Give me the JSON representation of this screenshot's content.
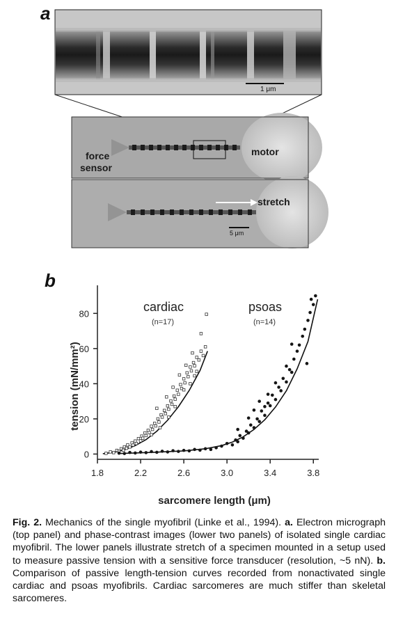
{
  "panel_a": {
    "letter": "a",
    "em_scale_label": "1 μm",
    "force_sensor_label_1": "force",
    "force_sensor_label_2": "sensor",
    "motor_label": "motor",
    "stretch_label": "stretch",
    "phase_scale_label": "5 μm"
  },
  "panel_b": {
    "letter": "b"
  },
  "chart_data": {
    "type": "scatter",
    "title": "",
    "xlabel": "sarcomere length (μm)",
    "ylabel": "tension (mN/mm²)",
    "xlim": [
      1.8,
      3.85
    ],
    "ylim": [
      -3,
      92
    ],
    "xticks": [
      "1.8",
      "2.2",
      "2.6",
      "3.0",
      "3.4",
      "3.8"
    ],
    "xtick_values": [
      1.8,
      2.2,
      2.6,
      3.0,
      3.4,
      3.8
    ],
    "yticks": [
      "0",
      "20",
      "40",
      "60",
      "80"
    ],
    "ytick_values": [
      0,
      20,
      40,
      60,
      80
    ],
    "annotations": [
      {
        "text": "cardiac",
        "sub": "(n=17)"
      },
      {
        "text": "psoas",
        "sub": "(n=14)"
      }
    ],
    "series": [
      {
        "marker": "open",
        "points": [
          [
            1.88,
            0.4
          ],
          [
            1.92,
            1.2
          ],
          [
            1.95,
            0.8
          ],
          [
            1.98,
            2.1
          ],
          [
            2.0,
            1.5
          ],
          [
            2.02,
            3.0
          ],
          [
            2.04,
            2.2
          ],
          [
            2.05,
            4.1
          ],
          [
            2.07,
            3.3
          ],
          [
            2.08,
            5.2
          ],
          [
            2.1,
            4.0
          ],
          [
            2.12,
            6.3
          ],
          [
            2.13,
            5.1
          ],
          [
            2.15,
            7.4
          ],
          [
            2.16,
            6.0
          ],
          [
            2.18,
            8.8
          ],
          [
            2.2,
            7.5
          ],
          [
            2.21,
            10.2
          ],
          [
            2.22,
            9.0
          ],
          [
            2.24,
            12.0
          ],
          [
            2.25,
            10.5
          ],
          [
            2.27,
            13.5
          ],
          [
            2.28,
            12.2
          ],
          [
            2.3,
            15.8
          ],
          [
            2.31,
            14.0
          ],
          [
            2.33,
            17.5
          ],
          [
            2.34,
            16.0
          ],
          [
            2.36,
            20.0
          ],
          [
            2.37,
            18.2
          ],
          [
            2.39,
            22.3
          ],
          [
            2.4,
            21.0
          ],
          [
            2.42,
            24.8
          ],
          [
            2.43,
            23.0
          ],
          [
            2.45,
            27.4
          ],
          [
            2.46,
            25.5
          ],
          [
            2.48,
            30.2
          ],
          [
            2.49,
            28.3
          ],
          [
            2.51,
            33.0
          ],
          [
            2.52,
            31.2
          ],
          [
            2.54,
            36.3
          ],
          [
            2.55,
            34.0
          ],
          [
            2.57,
            39.5
          ],
          [
            2.58,
            37.3
          ],
          [
            2.6,
            42.8
          ],
          [
            2.61,
            40.5
          ],
          [
            2.63,
            46.2
          ],
          [
            2.64,
            44.0
          ],
          [
            2.66,
            49.5
          ],
          [
            2.67,
            47.3
          ],
          [
            2.69,
            52.0
          ],
          [
            2.7,
            50.2
          ],
          [
            2.72,
            55.0
          ],
          [
            2.74,
            53.5
          ],
          [
            2.76,
            58.5
          ],
          [
            2.78,
            56.0
          ],
          [
            2.8,
            61.0
          ],
          [
            2.35,
            26.0
          ],
          [
            2.44,
            32.5
          ],
          [
            2.5,
            38.0
          ],
          [
            2.56,
            45.0
          ],
          [
            2.62,
            50.5
          ],
          [
            2.68,
            57.5
          ],
          [
            2.72,
            47.0
          ],
          [
            2.6,
            36.5
          ],
          [
            2.52,
            27.0
          ],
          [
            2.46,
            21.0
          ],
          [
            2.38,
            15.0
          ],
          [
            2.3,
            11.0
          ],
          [
            2.76,
            68.5
          ],
          [
            2.81,
            79.5
          ],
          [
            2.7,
            44.5
          ],
          [
            2.66,
            40.0
          ]
        ]
      },
      {
        "marker": "filled",
        "points": [
          [
            2.0,
            0.5
          ],
          [
            2.05,
            0.3
          ],
          [
            2.1,
            0.9
          ],
          [
            2.15,
            0.6
          ],
          [
            2.2,
            1.1
          ],
          [
            2.25,
            0.8
          ],
          [
            2.3,
            1.4
          ],
          [
            2.35,
            1.0
          ],
          [
            2.4,
            1.6
          ],
          [
            2.45,
            1.2
          ],
          [
            2.5,
            1.9
          ],
          [
            2.55,
            1.5
          ],
          [
            2.6,
            2.1
          ],
          [
            2.65,
            1.8
          ],
          [
            2.7,
            2.6
          ],
          [
            2.75,
            2.2
          ],
          [
            2.8,
            3.0
          ],
          [
            2.85,
            2.6
          ],
          [
            2.9,
            3.6
          ],
          [
            2.95,
            4.5
          ],
          [
            3.0,
            6.0
          ],
          [
            3.05,
            5.2
          ],
          [
            3.08,
            8.0
          ],
          [
            3.1,
            7.0
          ],
          [
            3.12,
            10.5
          ],
          [
            3.15,
            9.0
          ],
          [
            3.18,
            13.0
          ],
          [
            3.2,
            12.0
          ],
          [
            3.22,
            16.5
          ],
          [
            3.25,
            15.0
          ],
          [
            3.28,
            20.0
          ],
          [
            3.3,
            18.5
          ],
          [
            3.32,
            24.5
          ],
          [
            3.35,
            22.0
          ],
          [
            3.38,
            29.0
          ],
          [
            3.4,
            27.5
          ],
          [
            3.42,
            33.5
          ],
          [
            3.45,
            31.0
          ],
          [
            3.48,
            38.0
          ],
          [
            3.5,
            36.0
          ],
          [
            3.52,
            43.0
          ],
          [
            3.55,
            41.0
          ],
          [
            3.58,
            48.0
          ],
          [
            3.6,
            46.5
          ],
          [
            3.62,
            54.0
          ],
          [
            3.65,
            58.5
          ],
          [
            3.67,
            62.0
          ],
          [
            3.7,
            67.0
          ],
          [
            3.72,
            71.0
          ],
          [
            3.75,
            76.0
          ],
          [
            3.77,
            80.5
          ],
          [
            3.8,
            85.0
          ],
          [
            3.82,
            90.0
          ],
          [
            3.78,
            88.0
          ],
          [
            3.74,
            51.5
          ],
          [
            3.6,
            62.5
          ],
          [
            3.45,
            40.5
          ],
          [
            3.38,
            34.0
          ],
          [
            3.3,
            30.0
          ],
          [
            3.25,
            25.0
          ],
          [
            3.2,
            20.5
          ],
          [
            3.35,
            27.0
          ],
          [
            3.55,
            50.0
          ],
          [
            3.1,
            14.0
          ]
        ]
      }
    ],
    "fits": [
      {
        "x": [
          1.85,
          1.95,
          2.05,
          2.15,
          2.25,
          2.35,
          2.45,
          2.55,
          2.65,
          2.75,
          2.82
        ],
        "y": [
          0.2,
          0.9,
          2.4,
          4.8,
          8.2,
          13.0,
          19.2,
          26.9,
          36.2,
          47.5,
          58.5
        ]
      },
      {
        "x": [
          2.0,
          2.3,
          2.6,
          2.8,
          2.95,
          3.05,
          3.15,
          3.25,
          3.35,
          3.45,
          3.55,
          3.65,
          3.75,
          3.84
        ],
        "y": [
          0.3,
          0.9,
          1.8,
          3.0,
          4.8,
          6.8,
          9.8,
          14.0,
          19.5,
          26.8,
          36.0,
          48.5,
          64.0,
          88.0
        ]
      }
    ]
  },
  "caption": {
    "fig_label": "Fig. 2.",
    "intro": " Mechanics of the single myofibril (Linke et al., 1994). ",
    "a_label": "a.",
    "a_text": " Electron micrograph (top panel) and phase-contrast images (lower two panels) of isolated single cardiac myofibril. The lower panels illustrate stretch of a specimen mounted in a setup used to measure passive tension with a sensitive force transducer (resolution, ~5 nN). ",
    "b_label": "b.",
    "b_text": " Comparison of passive length-tension curves recorded from nonactivated single cardiac and psoas myofibrils. Cardiac sarcomeres are much stiffer than skeletal sarcomeres."
  }
}
